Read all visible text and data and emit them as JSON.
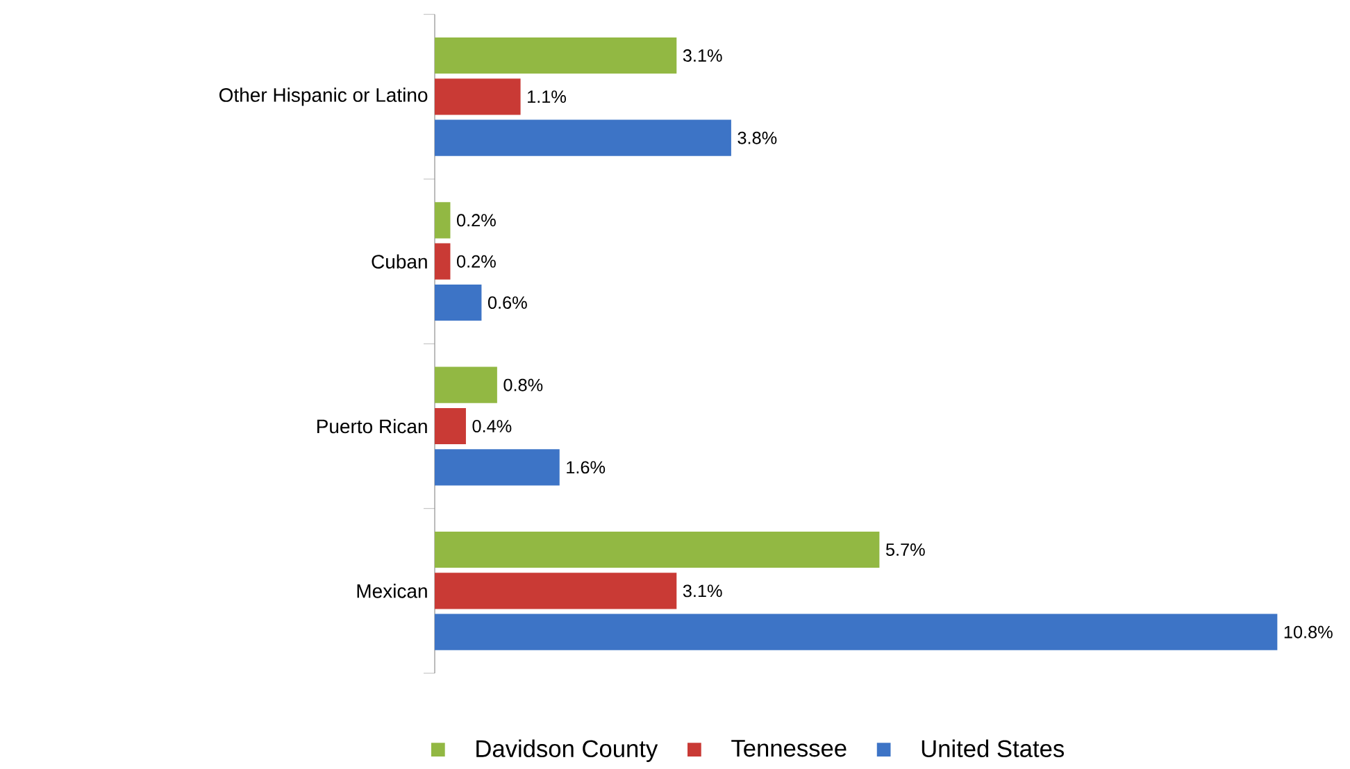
{
  "chart_data": {
    "type": "bar",
    "orientation": "horizontal",
    "categories": [
      "Other Hispanic or Latino",
      "Cuban",
      "Puerto Rican",
      "Mexican"
    ],
    "series": [
      {
        "name": "Davidson County",
        "color": "#92b843",
        "values": [
          3.1,
          0.2,
          0.8,
          5.7
        ],
        "value_labels": [
          "3.1%",
          "0.2%",
          "0.8%",
          "5.7%"
        ]
      },
      {
        "name": "Tennessee",
        "color": "#c93a35",
        "values": [
          1.1,
          0.2,
          0.4,
          3.1
        ],
        "value_labels": [
          "1.1%",
          "0.2%",
          "0.4%",
          "3.1%"
        ]
      },
      {
        "name": "United States",
        "color": "#3d74c6",
        "values": [
          3.8,
          0.6,
          1.6,
          10.8
        ],
        "value_labels": [
          "3.8%",
          "0.6%",
          "1.6%",
          "10.8%"
        ]
      }
    ],
    "legend": "bottom"
  }
}
